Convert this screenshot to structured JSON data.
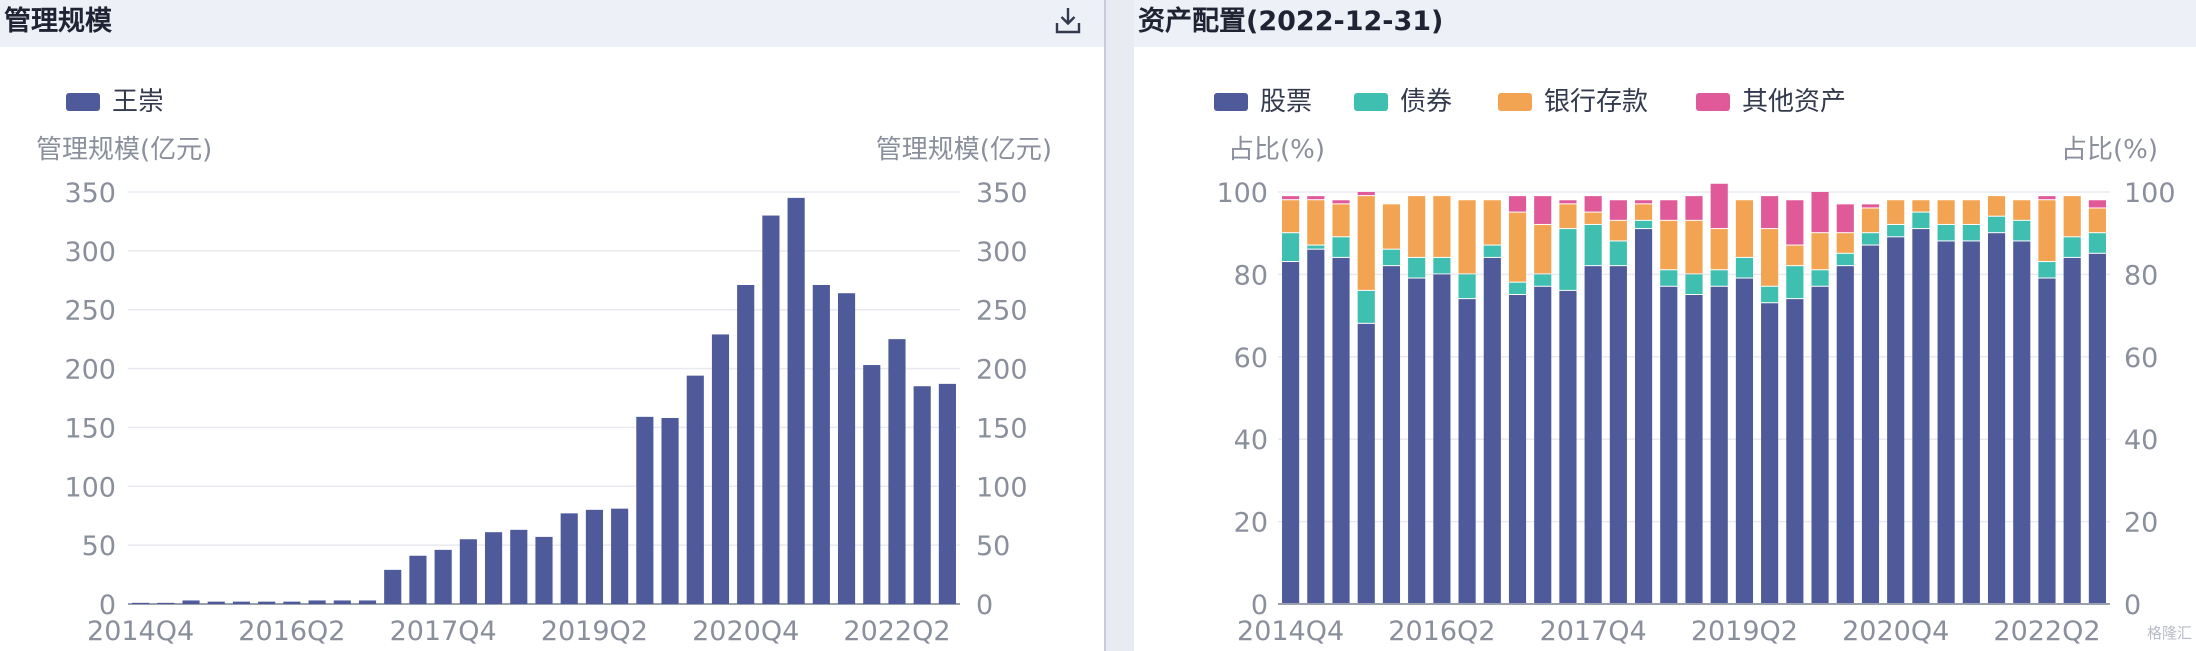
{
  "left": {
    "title": "管理规模",
    "download_icon": "download-icon",
    "chart_data": {
      "type": "bar",
      "legend": [
        {
          "name": "王崇",
          "color": "#4e5a9a"
        }
      ],
      "ylabel_left": "管理规模(亿元)",
      "ylabel_right": "管理规模(亿元)",
      "ylim": [
        0,
        350
      ],
      "yticks": [
        0,
        50,
        100,
        150,
        200,
        250,
        300,
        350
      ],
      "x_tick_labels": [
        "2014Q4",
        "2016Q2",
        "2017Q4",
        "2019Q2",
        "2020Q4",
        "2022Q2"
      ],
      "x_tick_indices": [
        0,
        6,
        12,
        18,
        24,
        30
      ],
      "categories": [
        "2014Q4",
        "2015Q1",
        "2015Q2",
        "2015Q3",
        "2015Q4",
        "2016Q1",
        "2016Q2",
        "2016Q3",
        "2016Q4",
        "2017Q1",
        "2017Q2",
        "2017Q3",
        "2017Q4",
        "2018Q1",
        "2018Q2",
        "2018Q3",
        "2018Q4",
        "2019Q1",
        "2019Q2",
        "2019Q3",
        "2019Q4",
        "2020Q1",
        "2020Q2",
        "2020Q3",
        "2020Q4",
        "2021Q1",
        "2021Q2",
        "2021Q3",
        "2021Q4",
        "2022Q1",
        "2022Q2",
        "2022Q3",
        "2022Q4"
      ],
      "values": [
        1,
        1,
        3,
        2,
        2,
        2,
        2,
        3,
        3,
        3,
        29,
        41,
        46,
        55,
        61,
        63,
        57,
        77,
        80,
        81,
        159,
        158,
        194,
        229,
        271,
        330,
        345,
        271,
        264,
        203,
        225,
        185,
        187
      ],
      "grid": true
    }
  },
  "right": {
    "title": "资产配置(2022-12-31)",
    "chart_data": {
      "type": "bar",
      "stacked": true,
      "ylabel_left": "占比(%)",
      "ylabel_right": "占比(%)",
      "ylim": [
        0,
        100
      ],
      "yticks": [
        0,
        20,
        40,
        60,
        80,
        100
      ],
      "x_tick_labels": [
        "2014Q4",
        "2016Q2",
        "2017Q4",
        "2019Q2",
        "2020Q4",
        "2022Q2"
      ],
      "x_tick_indices": [
        0,
        6,
        12,
        18,
        24,
        30
      ],
      "categories": [
        "2014Q4",
        "2015Q1",
        "2015Q2",
        "2015Q3",
        "2015Q4",
        "2016Q1",
        "2016Q2",
        "2016Q3",
        "2016Q4",
        "2017Q1",
        "2017Q2",
        "2017Q3",
        "2017Q4",
        "2018Q1",
        "2018Q2",
        "2018Q3",
        "2018Q4",
        "2019Q1",
        "2019Q2",
        "2019Q3",
        "2019Q4",
        "2020Q1",
        "2020Q2",
        "2020Q3",
        "2020Q4",
        "2021Q1",
        "2021Q2",
        "2021Q3",
        "2021Q4",
        "2022Q1",
        "2022Q2",
        "2022Q3",
        "2022Q4"
      ],
      "series": [
        {
          "name": "股票",
          "color": "#4e5a9a",
          "values": [
            83,
            86,
            84,
            68,
            82,
            79,
            80,
            74,
            84,
            75,
            77,
            76,
            82,
            82,
            91,
            77,
            75,
            77,
            79,
            73,
            74,
            77,
            82,
            87,
            89,
            91,
            88,
            88,
            90,
            88,
            79,
            84,
            85
          ]
        },
        {
          "name": "债券",
          "color": "#3fbfb0",
          "values": [
            7,
            1,
            5,
            8,
            4,
            5,
            4,
            6,
            3,
            3,
            3,
            15,
            10,
            6,
            2,
            4,
            5,
            4,
            5,
            4,
            8,
            4,
            3,
            3,
            3,
            4,
            4,
            4,
            4,
            5,
            4,
            5,
            5
          ]
        },
        {
          "name": "银行存款",
          "color": "#f2a453",
          "values": [
            8,
            11,
            8,
            23,
            11,
            15,
            15,
            18,
            11,
            17,
            12,
            6,
            3,
            5,
            4,
            12,
            13,
            10,
            14,
            14,
            5,
            9,
            5,
            6,
            6,
            3,
            6,
            6,
            5,
            5,
            15,
            10,
            6
          ]
        },
        {
          "name": "其他资产",
          "color": "#e05a9a",
          "values": [
            1,
            1,
            1,
            1,
            0,
            0,
            0,
            0,
            0,
            4,
            7,
            1,
            4,
            5,
            1,
            5,
            6,
            11,
            0,
            8,
            11,
            10,
            7,
            1,
            0,
            0,
            0,
            0,
            0,
            0,
            1,
            0,
            2
          ]
        }
      ],
      "grid": true
    }
  },
  "watermark": "格隆汇"
}
